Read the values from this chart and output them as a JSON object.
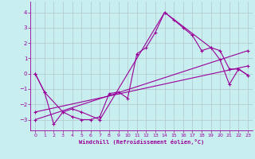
{
  "xlabel": "Windchill (Refroidissement éolien,°C)",
  "bg_color": "#c8eef0",
  "line_color": "#990099",
  "grid_color": "#b0c8cc",
  "xlim": [
    -0.5,
    23.5
  ],
  "ylim": [
    -3.7,
    4.7
  ],
  "xticks": [
    0,
    1,
    2,
    3,
    4,
    5,
    6,
    7,
    8,
    9,
    10,
    11,
    12,
    13,
    14,
    15,
    16,
    17,
    18,
    19,
    20,
    21,
    22,
    23
  ],
  "yticks": [
    -3,
    -2,
    -1,
    0,
    1,
    2,
    3,
    4
  ],
  "line1_x": [
    0,
    1,
    2,
    3,
    4,
    5,
    6,
    7,
    8,
    9,
    10,
    11,
    12,
    13,
    14,
    15,
    16,
    17,
    18,
    19,
    20,
    21,
    22,
    23
  ],
  "line1_y": [
    0.0,
    -1.2,
    -3.3,
    -2.5,
    -2.8,
    -3.0,
    -3.0,
    -2.8,
    -1.3,
    -1.2,
    -1.6,
    1.3,
    1.7,
    2.7,
    4.0,
    3.5,
    3.0,
    2.5,
    1.5,
    1.7,
    1.5,
    0.3,
    0.3,
    -0.1
  ],
  "line2_x": [
    0,
    1,
    3,
    4,
    5,
    7,
    14,
    19,
    20,
    21,
    22,
    23
  ],
  "line2_y": [
    0.0,
    -1.2,
    -2.5,
    -2.3,
    -2.5,
    -3.0,
    4.0,
    1.7,
    0.9,
    -0.7,
    0.3,
    -0.1
  ],
  "line3_x": [
    0,
    23
  ],
  "line3_y": [
    -3.0,
    1.5
  ],
  "line4_x": [
    0,
    23
  ],
  "line4_y": [
    -2.5,
    0.5
  ]
}
